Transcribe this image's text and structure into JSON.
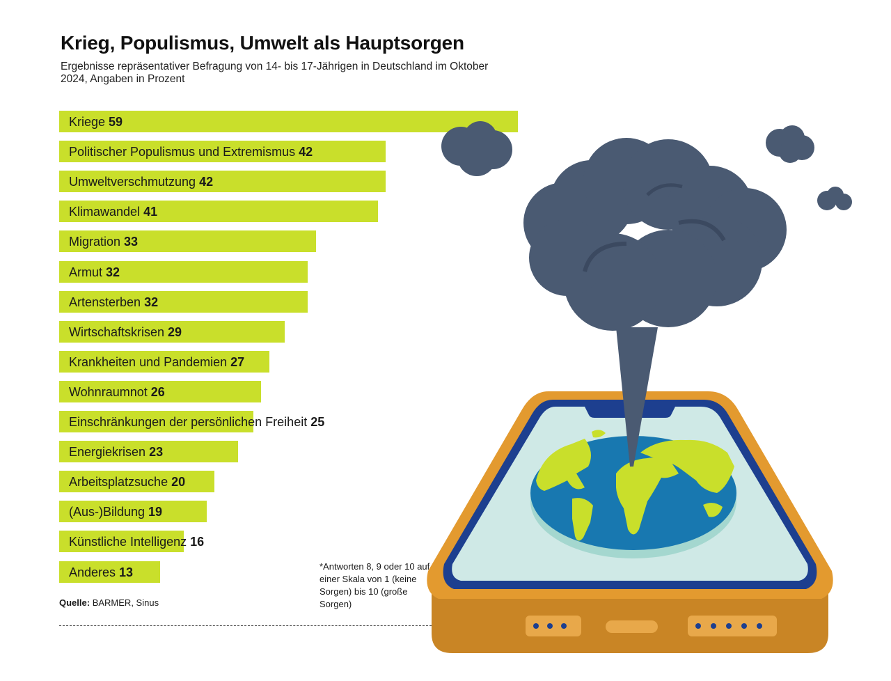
{
  "chart_data": {
    "type": "bar",
    "orientation": "horizontal",
    "title": "Krieg, Populismus, Umwelt als Hauptsorgen",
    "subtitle": "Ergebnisse repräsentativer Befragung von 14- bis 17-Jährigen in Deutschland im Oktober 2024, Angaben in Prozent",
    "categories": [
      "Kriege",
      "Politischer Populismus und Extremismus",
      "Umweltverschmutzung",
      "Klimawandel",
      "Migration",
      "Armut",
      "Artensterben",
      "Wirtschaftskrisen",
      "Krankheiten und Pandemien",
      "Wohnraumnot",
      "Einschränkungen der persönlichen Freiheit",
      "Energiekrisen",
      "Arbeitsplatzsuche",
      "(Aus-)Bildung",
      "Künstliche Intelligenz",
      "Anderes"
    ],
    "values": [
      59,
      42,
      42,
      41,
      33,
      32,
      32,
      29,
      27,
      26,
      25,
      23,
      20,
      19,
      16,
      13
    ],
    "bar_color": "#c9df2b",
    "axis_visible": false,
    "grid": false
  },
  "source": {
    "label": "Quelle:",
    "text": "BARMER, Sinus"
  },
  "footnote": "*Antworten 8, 9 oder 10 auf einer Skala von 1 (keine Sorgen) bis 10 (große Sorgen)",
  "colors": {
    "bar": "#c9df2b",
    "cloud": "#4a5a72",
    "phone_body": "#e39a2f",
    "phone_screen": "#cfe9e6",
    "phone_frame": "#1d3f8f",
    "earth_ocean": "#1878b0",
    "earth_land": "#c9df2b"
  }
}
